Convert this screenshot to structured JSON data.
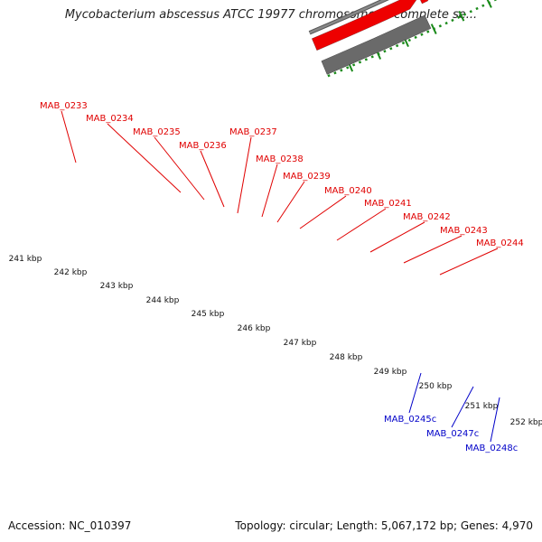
{
  "title": "Mycobacterium abscessus ATCC 19977 chromosome 1, complete se...",
  "footer": {
    "accession": "Accession: NC_010397",
    "stats": "Topology: circular; Length: 5,067,172 bp; Genes: 4,970"
  },
  "colors": {
    "forward_gene": "#ee0000",
    "reverse_gene": "#0000ee",
    "pseudo_gene": "#f08080",
    "backbone": "#888888",
    "dark_feature": "#6a6a6a",
    "dotted_ring": "#1a8a1a",
    "forward_label": "#e00000",
    "reverse_label": "#0000c8"
  },
  "forward_labels": [
    "MAB_0233",
    "MAB_0234",
    "MAB_0235",
    "MAB_0236",
    "MAB_0237",
    "MAB_0238",
    "MAB_0239",
    "MAB_0240",
    "MAB_0241",
    "MAB_0242",
    "MAB_0243",
    "MAB_0244"
  ],
  "reverse_labels": [
    "MAB_0245c",
    "MAB_0247c",
    "MAB_0248c"
  ],
  "ticks": [
    "241 kbp",
    "242 kbp",
    "243 kbp",
    "244 kbp",
    "245 kbp",
    "246 kbp",
    "247 kbp",
    "248 kbp",
    "249 kbp",
    "250 kbp",
    "251 kbp",
    "252 kbp"
  ]
}
